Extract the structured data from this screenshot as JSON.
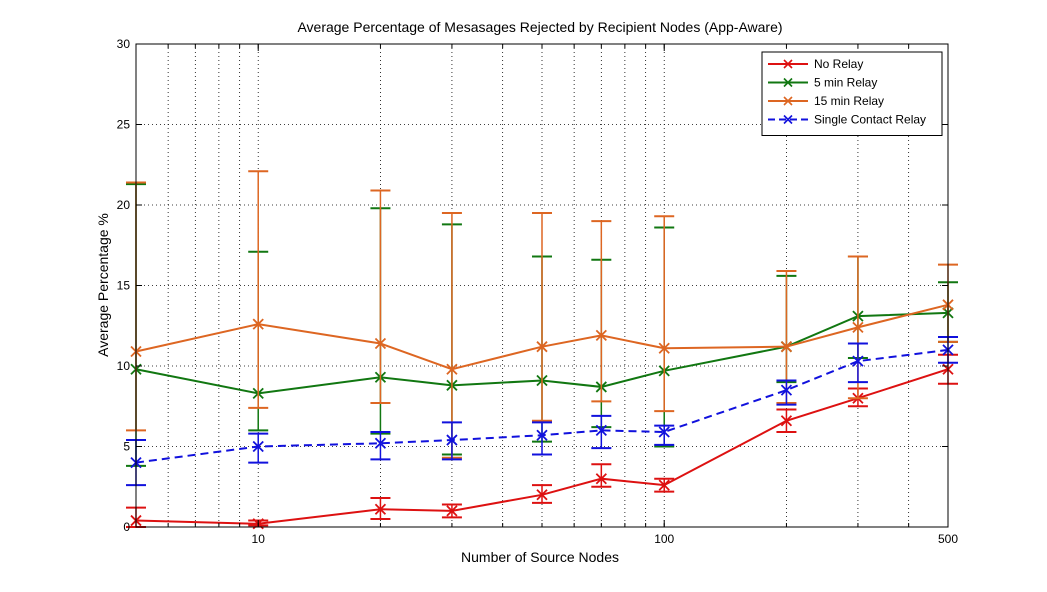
{
  "chart_data": {
    "type": "line",
    "title": "Average Percentage of Mesasages Rejected by Recipient Nodes (App-Aware)",
    "xlabel": "Number of Source Nodes",
    "ylabel": "Average Percentage %",
    "xscale": "log",
    "xlim": [
      5,
      500
    ],
    "ylim": [
      0,
      30
    ],
    "xticks": [
      10,
      100,
      500
    ],
    "xtick_labels": [
      "10",
      "100",
      "500"
    ],
    "yticks": [
      0,
      5,
      10,
      15,
      20,
      25,
      30
    ],
    "ytick_labels": [
      "0",
      "5",
      "10",
      "15",
      "20",
      "25",
      "30"
    ],
    "grid": true,
    "legend_position": "top-right",
    "x": [
      5,
      10,
      20,
      30,
      50,
      70,
      100,
      200,
      300,
      500
    ],
    "series": [
      {
        "name": "No Relay",
        "color": "#dd1111",
        "dashed": false,
        "values": [
          0.4,
          0.2,
          1.1,
          1.0,
          2.0,
          3.0,
          2.6,
          6.6,
          8.0,
          9.8
        ],
        "err_low": [
          0,
          0.1,
          0.5,
          0.6,
          1.5,
          2.5,
          2.2,
          5.9,
          7.5,
          8.9
        ],
        "err_high": [
          1.2,
          0.4,
          1.8,
          1.4,
          2.6,
          3.9,
          3.0,
          7.3,
          8.6,
          10.7
        ]
      },
      {
        "name": "5 min Relay",
        "color": "#117711",
        "dashed": false,
        "values": [
          9.8,
          8.3,
          9.3,
          8.8,
          9.1,
          8.7,
          9.7,
          11.2,
          13.1,
          13.3
        ],
        "err_low": [
          3.8,
          6.0,
          5.8,
          4.5,
          5.3,
          6.2,
          5.0,
          9.0,
          10.5,
          11.5
        ],
        "err_high": [
          21.3,
          17.1,
          19.8,
          18.8,
          16.8,
          16.6,
          18.6,
          15.6,
          16.8,
          15.2
        ]
      },
      {
        "name": "15 min Relay",
        "color": "#dd6622",
        "dashed": false,
        "values": [
          10.9,
          12.6,
          11.4,
          9.8,
          11.2,
          11.9,
          11.1,
          11.2,
          12.4,
          13.8
        ],
        "err_low": [
          6.0,
          7.4,
          7.7,
          4.3,
          6.6,
          7.8,
          7.2,
          7.7,
          8.0,
          11.5
        ],
        "err_high": [
          21.4,
          22.1,
          20.9,
          19.5,
          19.5,
          19.0,
          19.3,
          15.9,
          16.8,
          16.3
        ]
      },
      {
        "name": "Single Contact Relay",
        "color": "#1111dd",
        "dashed": true,
        "values": [
          4.0,
          5.0,
          5.2,
          5.4,
          5.7,
          6.0,
          5.9,
          8.5,
          10.3,
          11.0
        ],
        "err_low": [
          2.6,
          4.0,
          4.2,
          4.2,
          4.5,
          4.9,
          5.1,
          7.6,
          9.0,
          10.2
        ],
        "err_high": [
          5.4,
          5.8,
          5.9,
          6.5,
          6.5,
          6.9,
          6.3,
          9.1,
          11.4,
          11.8
        ]
      }
    ]
  }
}
